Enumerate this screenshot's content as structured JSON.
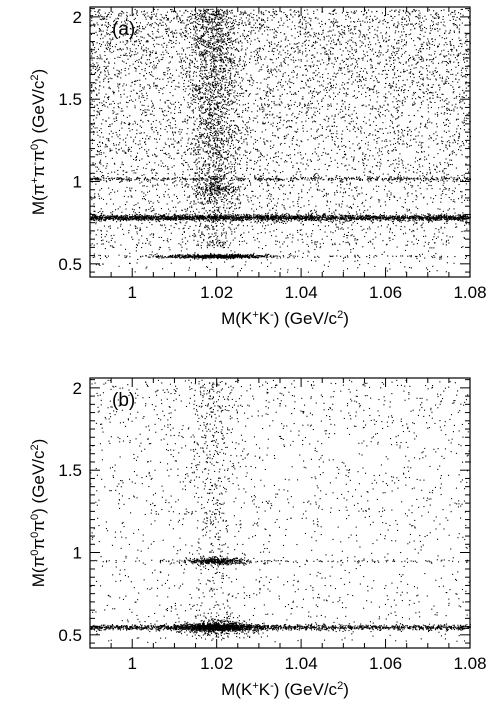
{
  "figure": {
    "panels": [
      {
        "tag": "(a)",
        "xlabel_parts": [
          {
            "t": "M(K",
            "s": "n"
          },
          {
            "t": "+",
            "s": "sup"
          },
          {
            "t": "K",
            "s": "n"
          },
          {
            "t": "-",
            "s": "sup"
          },
          {
            "t": ") (GeV/c",
            "s": "n"
          },
          {
            "t": "2",
            "s": "sup"
          },
          {
            "t": ")",
            "s": "n"
          }
        ],
        "ylabel_parts": [
          {
            "t": "M(π",
            "s": "n"
          },
          {
            "t": "+",
            "s": "sup"
          },
          {
            "t": "π",
            "s": "n"
          },
          {
            "t": "-",
            "s": "sup"
          },
          {
            "t": "π",
            "s": "n"
          },
          {
            "t": "0",
            "s": "sup"
          },
          {
            "t": ") (GeV/c",
            "s": "n"
          },
          {
            "t": "2",
            "s": "sup"
          },
          {
            "t": ")",
            "s": "n"
          }
        ]
      },
      {
        "tag": "(b)",
        "xlabel_parts": [
          {
            "t": "M(K",
            "s": "n"
          },
          {
            "t": "+",
            "s": "sup"
          },
          {
            "t": "K",
            "s": "n"
          },
          {
            "t": "-",
            "s": "sup"
          },
          {
            "t": ") (GeV/c",
            "s": "n"
          },
          {
            "t": "2",
            "s": "sup"
          },
          {
            "t": ")",
            "s": "n"
          }
        ],
        "ylabel_parts": [
          {
            "t": "M(π",
            "s": "n"
          },
          {
            "t": "0",
            "s": "sup"
          },
          {
            "t": "π",
            "s": "n"
          },
          {
            "t": "0",
            "s": "sup"
          },
          {
            "t": "π",
            "s": "n"
          },
          {
            "t": "0",
            "s": "sup"
          },
          {
            "t": ") (GeV/c",
            "s": "n"
          },
          {
            "t": "2",
            "s": "sup"
          },
          {
            "t": ")",
            "s": "n"
          }
        ]
      }
    ]
  },
  "chart_data": [
    {
      "type": "scatter",
      "panel": "(a)",
      "title": "",
      "xlabel": "M(K+K-) (GeV/c2)",
      "ylabel": "M(π+π-π0) (GeV/c2)",
      "xlim": [
        0.99,
        1.08
      ],
      "ylim": [
        0.42,
        2.06
      ],
      "xticks": [
        1,
        1.02,
        1.04,
        1.06,
        1.08
      ],
      "xtick_labels": [
        "1",
        "1.02",
        "1.04",
        "1.06",
        "1.08"
      ],
      "yticks": [
        0.5,
        1,
        1.5,
        2
      ],
      "ytick_labels": [
        "0.5",
        "1",
        "1.5",
        "2"
      ],
      "grid": false,
      "legend": "none",
      "marker_color": "#000000",
      "point_density": {
        "uniform_background": {
          "x": [
            0.99,
            1.08
          ],
          "y": [
            0.6,
            2.05
          ],
          "relative_density": "high"
        },
        "vertical_band_phi": {
          "x_center": 1.019,
          "x_width": 0.003,
          "y": [
            0.6,
            2.05
          ]
        },
        "horizontal_band_omega": {
          "y_center": 0.783,
          "y_width": 0.009,
          "x": [
            0.99,
            1.08
          ]
        },
        "horizontal_band_phi3pi": {
          "y_center": 1.019,
          "y_width": 0.006,
          "x": [
            0.99,
            1.08
          ],
          "relative_density": "weak"
        },
        "cluster_eta": {
          "x_center": 1.02,
          "y_center": 0.548,
          "x_range": [
            1.01,
            1.035
          ]
        },
        "cluster_phi_phi": {
          "x_center": 1.02,
          "y_center": 0.96
        }
      }
    },
    {
      "type": "scatter",
      "panel": "(b)",
      "title": "",
      "xlabel": "M(K+K-) (GeV/c2)",
      "ylabel": "M(π0π0π0) (GeV/c2)",
      "xlim": [
        0.99,
        1.08
      ],
      "ylim": [
        0.42,
        2.06
      ],
      "xticks": [
        1,
        1.02,
        1.04,
        1.06,
        1.08
      ],
      "xtick_labels": [
        "1",
        "1.02",
        "1.04",
        "1.06",
        "1.08"
      ],
      "yticks": [
        0.5,
        1,
        1.5,
        2
      ],
      "ytick_labels": [
        "0.5",
        "1",
        "1.5",
        "2"
      ],
      "grid": false,
      "legend": "none",
      "marker_color": "#000000",
      "point_density": {
        "uniform_background": {
          "x": [
            0.99,
            1.08
          ],
          "y": [
            0.6,
            2.05
          ],
          "relative_density": "low"
        },
        "vertical_band_phi": {
          "x_center": 1.019,
          "x_width": 0.003,
          "y": [
            0.6,
            2.05
          ]
        },
        "horizontal_band_eta": {
          "y_center": 0.548,
          "y_width": 0.008,
          "x": [
            0.99,
            1.08
          ]
        },
        "cluster_eta": {
          "x_center": 1.02,
          "y_center": 0.548
        },
        "cluster_phi_phi": {
          "x_center": 1.02,
          "y_center": 0.95,
          "x_range": [
            1.012,
            1.028
          ]
        }
      }
    }
  ]
}
